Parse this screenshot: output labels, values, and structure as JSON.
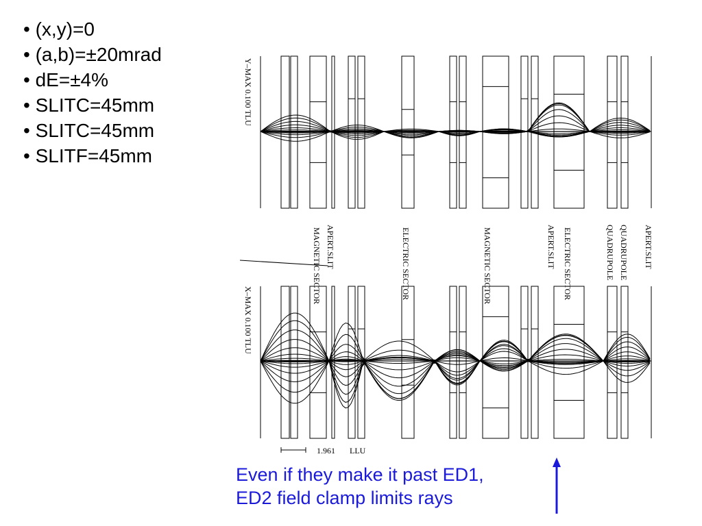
{
  "bullets": [
    "(x,y)=0",
    "(a,b)=±20mrad",
    "dE=±4%",
    "SLITC=45mm",
    "SLITC=45mm",
    "SLITF=45mm"
  ],
  "top_plot": {
    "axis_label": "Y–MAX   0.100   TLU"
  },
  "bottom_plot": {
    "axis_label": "X–MAX   0.100   TLU"
  },
  "element_labels": [
    "MAGNETIC SECTOR",
    "APERT.SLIT",
    "ELECTRIC SECTOR",
    "MAGNETIC SECTOR",
    "APERT.SLIT",
    "ELECTRIC SECTOR",
    "QUADRUPOLE",
    "QUADRUPOLE",
    "APERT.SLIT"
  ],
  "scale_bar": {
    "value": "1.961",
    "unit": "LLU"
  },
  "annotation": {
    "line1": "Even if they make it past ED1,",
    "line2": "ED2 field clamp limits rays",
    "color": "#1a1ad8"
  }
}
